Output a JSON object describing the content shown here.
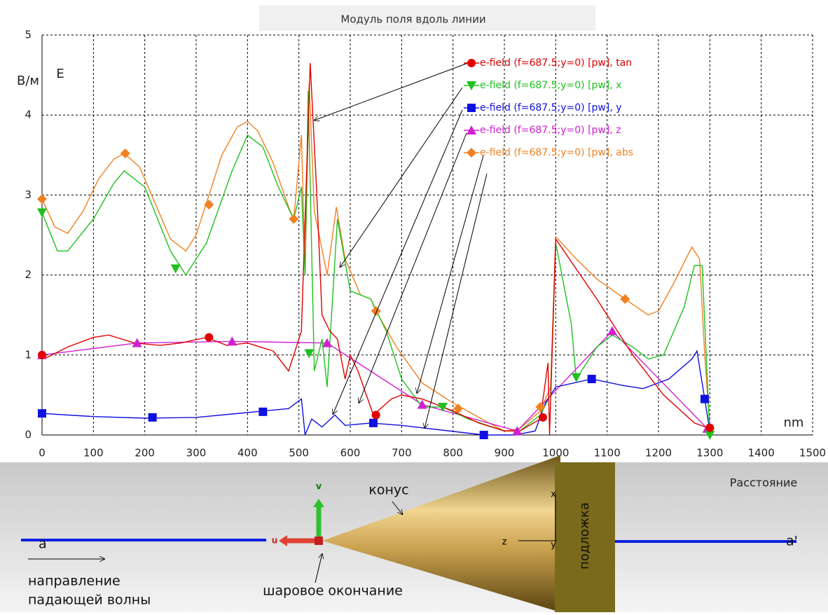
{
  "chart_data": {
    "type": "line",
    "title": "Модуль поля вдоль линии",
    "y_unit": "В/м",
    "y_label": "E",
    "x_unit": "nm",
    "x_label": "Расстояние",
    "xlim": [
      0,
      1500
    ],
    "xticks": [
      0,
      100,
      200,
      300,
      400,
      500,
      600,
      700,
      800,
      900,
      1000,
      1100,
      1200,
      1300,
      1400,
      1500
    ],
    "ylim": [
      0,
      5
    ],
    "yticks": [
      0,
      1,
      2,
      3,
      4,
      5
    ],
    "grid": true,
    "series": [
      {
        "name": "e-field (f=687.5;y=0) [pw], tan",
        "color": "#e00000",
        "marker": "circle",
        "x": [
          0,
          10,
          50,
          100,
          130,
          180,
          230,
          270,
          320,
          360,
          400,
          450,
          480,
          500,
          505,
          522,
          535,
          545,
          560,
          575,
          590,
          600,
          615,
          645,
          680,
          700,
          740,
          800,
          850,
          900,
          930,
          970,
          985,
          988,
          1000,
          1080,
          1150,
          1210,
          1270,
          1300
        ],
        "values": [
          1.0,
          0.97,
          1.1,
          1.22,
          1.25,
          1.15,
          1.12,
          1.15,
          1.22,
          1.12,
          1.15,
          1.05,
          0.8,
          1.2,
          1.3,
          4.65,
          3.0,
          1.5,
          1.3,
          1.2,
          0.7,
          1.0,
          0.8,
          0.25,
          0.45,
          0.5,
          0.45,
          0.3,
          0.15,
          0.05,
          0.05,
          0.2,
          0.9,
          0.0,
          2.45,
          1.7,
          1.0,
          0.5,
          0.15,
          0.08
        ],
        "markers": {
          "x": [
            0,
            325,
            650,
            975,
            1300
          ],
          "values": [
            1.0,
            1.22,
            0.25,
            0.22,
            0.09
          ]
        }
      },
      {
        "name": "e-field (f=687.5;y=0) [pw], x",
        "color": "#20c020",
        "marker": "triangle-down",
        "x": [
          0,
          30,
          50,
          100,
          140,
          160,
          200,
          250,
          280,
          320,
          370,
          400,
          430,
          460,
          490,
          505,
          512,
          518,
          530,
          545,
          555,
          575,
          600,
          640,
          670,
          700,
          740,
          780,
          830,
          900,
          930,
          970,
          990,
          1000,
          1030,
          1040,
          1080,
          1110,
          1150,
          1180,
          1210,
          1250,
          1270,
          1285,
          1300
        ],
        "values": [
          2.78,
          2.3,
          2.3,
          2.7,
          3.15,
          3.3,
          3.1,
          2.3,
          2.0,
          2.4,
          3.3,
          3.75,
          3.6,
          3.1,
          2.7,
          3.1,
          2.0,
          4.3,
          0.8,
          1.2,
          0.6,
          2.7,
          1.8,
          1.7,
          1.3,
          0.7,
          0.35,
          0.35,
          0.2,
          0.05,
          0.05,
          0.25,
          0.5,
          2.4,
          1.4,
          0.7,
          1.1,
          1.25,
          1.1,
          0.95,
          1.0,
          1.6,
          2.12,
          2.12,
          0.0
        ],
        "markers": {
          "x": [
            0,
            260,
            520,
            780,
            1040,
            1300
          ],
          "values": [
            2.78,
            2.08,
            1.02,
            0.35,
            0.72,
            0.0
          ]
        }
      },
      {
        "name": "e-field (f=687.5;y=0) [pw], y",
        "color": "#1010e0",
        "marker": "square",
        "x": [
          0,
          50,
          100,
          200,
          300,
          400,
          480,
          505,
          512,
          525,
          545,
          570,
          590,
          640,
          700,
          860,
          920,
          960,
          980,
          1000,
          1070,
          1130,
          1170,
          1220,
          1265,
          1275,
          1290,
          1300
        ],
        "values": [
          0.27,
          0.25,
          0.23,
          0.21,
          0.22,
          0.28,
          0.33,
          0.45,
          0.0,
          0.2,
          0.1,
          0.25,
          0.12,
          0.15,
          0.12,
          0.0,
          0.0,
          0.05,
          0.4,
          0.6,
          0.7,
          0.62,
          0.58,
          0.7,
          0.95,
          1.05,
          0.45,
          0.05
        ],
        "markers": {
          "x": [
            0,
            215,
            430,
            645,
            860,
            1070,
            1290
          ],
          "values": [
            0.27,
            0.22,
            0.29,
            0.15,
            0.0,
            0.7,
            0.45
          ]
        }
      },
      {
        "name": "e-field (f=687.5;y=0) [pw], z",
        "color": "#d020d0",
        "marker": "triangle-up",
        "x": [
          0,
          185,
          370,
          555,
          740,
          925,
          1110,
          1295
        ],
        "values": [
          1.0,
          1.15,
          1.17,
          1.15,
          0.38,
          0.05,
          1.3,
          0.08
        ],
        "markers": {
          "x": [
            0,
            185,
            370,
            555,
            740,
            925,
            1110,
            1295
          ],
          "values": [
            1.0,
            1.15,
            1.17,
            1.15,
            0.38,
            0.05,
            1.3,
            0.08
          ]
        }
      },
      {
        "name": "e-field (f=687.5;y=0) [pw], abs",
        "color": "#f08020",
        "marker": "diamond",
        "x": [
          0,
          25,
          50,
          80,
          110,
          140,
          160,
          190,
          220,
          250,
          280,
          300,
          320,
          350,
          380,
          400,
          420,
          450,
          480,
          490,
          505,
          512,
          520,
          530,
          555,
          573,
          590,
          620,
          640,
          650,
          690,
          740,
          800,
          870,
          900,
          930,
          970,
          990,
          1000,
          1040,
          1080,
          1135,
          1180,
          1200,
          1230,
          1265,
          1280,
          1290,
          1300
        ],
        "values": [
          2.95,
          2.6,
          2.52,
          2.8,
          3.2,
          3.45,
          3.52,
          3.35,
          2.9,
          2.45,
          2.3,
          2.5,
          2.9,
          3.5,
          3.85,
          3.92,
          3.8,
          3.4,
          2.85,
          2.7,
          3.75,
          2.0,
          4.4,
          2.8,
          2.0,
          2.85,
          2.2,
          1.75,
          1.7,
          1.55,
          1.1,
          0.65,
          0.4,
          0.15,
          0.05,
          0.08,
          0.3,
          0.6,
          2.48,
          2.2,
          1.95,
          1.7,
          1.5,
          1.55,
          1.9,
          2.35,
          2.2,
          1.0,
          0.1
        ],
        "markers": {
          "x": [
            0,
            162,
            325,
            490,
            650,
            810,
            970,
            1135,
            1300
          ],
          "values": [
            2.95,
            3.52,
            2.88,
            2.7,
            1.55,
            0.33,
            0.35,
            1.7,
            0.08
          ]
        }
      }
    ]
  },
  "scene": {
    "a": "а",
    "a_prime": "а'",
    "cone": "конус",
    "substrate": "подложка",
    "direction_line1": "направление",
    "direction_line2": "падающей волны",
    "tip": "шаровое окончание",
    "v": "v",
    "u": "u",
    "x": "x",
    "y": "y",
    "z": "z"
  }
}
